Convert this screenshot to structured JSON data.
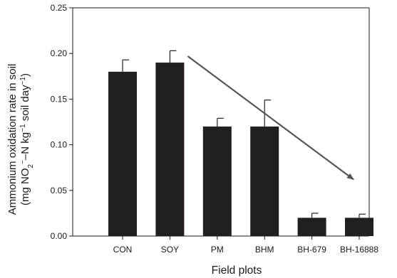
{
  "chart_data": {
    "type": "bar",
    "categories": [
      "CON",
      "SOY",
      "PM",
      "BHM",
      "BH-679",
      "BH-16888"
    ],
    "values": [
      0.18,
      0.19,
      0.12,
      0.12,
      0.02,
      0.02
    ],
    "error_bars": [
      0.013,
      0.013,
      0.009,
      0.029,
      0.005,
      0.004
    ],
    "xlabel": "Field plots",
    "ylabel_line1": "Ammonium oxidation rate in soil",
    "ylabel_line2": {
      "p1": "(mg NO",
      "sub1": "2",
      "sup1": "−",
      "p2": "–N kg",
      "sup2": "−1",
      "p3": " soil day",
      "sup3": "−1",
      "p4": ")"
    },
    "ylim": [
      0,
      0.25
    ],
    "yticks": [
      0.0,
      0.05,
      0.1,
      0.15,
      0.2,
      0.25
    ],
    "ytick_labels": [
      "0.00",
      "0.05",
      "0.10",
      "0.15",
      "0.20",
      "0.25"
    ],
    "annotations": [
      {
        "type": "arrow",
        "from": {
          "category": "SOY",
          "y": 0.197
        },
        "to": {
          "category": "BH-16888",
          "y": 0.062
        }
      }
    ],
    "grid": false,
    "colors": {
      "bar": "#231f20",
      "arrow": "#555555",
      "axis": "#1a1a1a"
    }
  }
}
